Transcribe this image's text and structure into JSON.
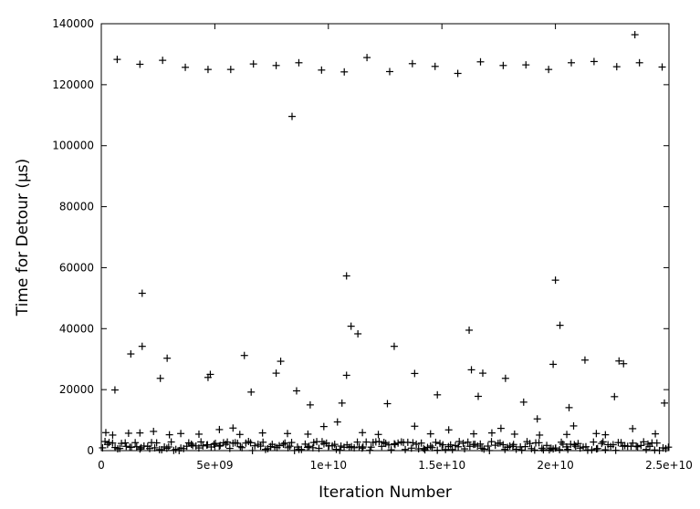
{
  "chart_data": {
    "type": "scatter",
    "title": "",
    "xlabel": "Iteration Number",
    "ylabel": "Time for Detour (µs)",
    "xlim": [
      0,
      25000000000
    ],
    "ylim": [
      0,
      140000
    ],
    "grid": false,
    "legend": "none",
    "marker": "plus",
    "marker_color": "#000000",
    "x_ticks": [
      {
        "value": 0,
        "label": "0"
      },
      {
        "value": 5000000000,
        "label": "5e+09"
      },
      {
        "value": 10000000000,
        "label": "1e+10"
      },
      {
        "value": 15000000000,
        "label": "1.5e+10"
      },
      {
        "value": 20000000000,
        "label": "2e+10"
      },
      {
        "value": 25000000000,
        "label": "2.5e+10"
      }
    ],
    "y_ticks": [
      {
        "value": 0,
        "label": "0"
      },
      {
        "value": 20000,
        "label": "20000"
      },
      {
        "value": 40000,
        "label": "40000"
      },
      {
        "value": 60000,
        "label": "60000"
      },
      {
        "value": 80000,
        "label": "80000"
      },
      {
        "value": 100000,
        "label": "100000"
      },
      {
        "value": 120000,
        "label": "120000"
      },
      {
        "value": 140000,
        "label": "140000"
      }
    ],
    "series": [
      {
        "values": [
          [
            700000000,
            128300
          ],
          [
            1700000000,
            126700
          ],
          [
            2700000000,
            128000
          ],
          [
            3700000000,
            125700
          ],
          [
            4700000000,
            125000
          ],
          [
            5700000000,
            125000
          ],
          [
            6700000000,
            126800
          ],
          [
            7700000000,
            126300
          ],
          [
            8700000000,
            127200
          ],
          [
            9700000000,
            124800
          ],
          [
            10700000000,
            124200
          ],
          [
            11700000000,
            128900
          ],
          [
            12700000000,
            124300
          ],
          [
            13700000000,
            126900
          ],
          [
            14700000000,
            126000
          ],
          [
            15700000000,
            123700
          ],
          [
            16700000000,
            127500
          ],
          [
            17700000000,
            126300
          ],
          [
            18700000000,
            126500
          ],
          [
            19700000000,
            125000
          ],
          [
            20700000000,
            127200
          ],
          [
            21700000000,
            127600
          ],
          [
            22700000000,
            125900
          ],
          [
            23500000000,
            136400
          ],
          [
            23700000000,
            127200
          ],
          [
            24700000000,
            125800
          ],
          [
            8400000000,
            109600
          ],
          [
            1800000000,
            51600
          ],
          [
            10800000000,
            57300
          ],
          [
            20000000000,
            55900
          ],
          [
            11000000000,
            40800
          ],
          [
            11300000000,
            38300
          ],
          [
            16200000000,
            39500
          ],
          [
            20200000000,
            41100
          ],
          [
            1300000000,
            31700
          ],
          [
            1800000000,
            34200
          ],
          [
            2900000000,
            30300
          ],
          [
            6300000000,
            31200
          ],
          [
            7900000000,
            29300
          ],
          [
            12900000000,
            34200
          ],
          [
            21300000000,
            29700
          ],
          [
            22800000000,
            29400
          ],
          [
            23000000000,
            28500
          ],
          [
            19900000000,
            28300
          ],
          [
            2600000000,
            23700
          ],
          [
            4700000000,
            24000
          ],
          [
            4800000000,
            25000
          ],
          [
            7700000000,
            25400
          ],
          [
            10800000000,
            24700
          ],
          [
            13800000000,
            25300
          ],
          [
            16300000000,
            26500
          ],
          [
            16800000000,
            25400
          ],
          [
            17800000000,
            23700
          ],
          [
            600000000,
            19900
          ],
          [
            6600000000,
            19200
          ],
          [
            8600000000,
            19600
          ],
          [
            14800000000,
            18300
          ],
          [
            16600000000,
            17800
          ],
          [
            22600000000,
            17700
          ],
          [
            9200000000,
            15000
          ],
          [
            10600000000,
            15600
          ],
          [
            12600000000,
            15400
          ],
          [
            18600000000,
            15900
          ],
          [
            20600000000,
            14100
          ],
          [
            24800000000,
            15600
          ],
          [
            10400000000,
            9400
          ],
          [
            19200000000,
            10400
          ],
          [
            9800000000,
            7900
          ],
          [
            13800000000,
            8000
          ],
          [
            20800000000,
            8100
          ],
          [
            23400000000,
            7200
          ],
          [
            5200000000,
            6900
          ],
          [
            15300000000,
            6800
          ],
          [
            17600000000,
            7300
          ],
          [
            5800000000,
            7400
          ],
          [
            200000000,
            5900
          ],
          [
            500000000,
            5100
          ],
          [
            1200000000,
            5700
          ],
          [
            1700000000,
            5800
          ],
          [
            2300000000,
            6300
          ],
          [
            3000000000,
            5200
          ],
          [
            3500000000,
            5600
          ],
          [
            4300000000,
            5400
          ],
          [
            6100000000,
            5300
          ],
          [
            7100000000,
            5800
          ],
          [
            8200000000,
            5600
          ],
          [
            9100000000,
            5400
          ],
          [
            11500000000,
            5900
          ],
          [
            12200000000,
            5300
          ],
          [
            14500000000,
            5500
          ],
          [
            16400000000,
            5500
          ],
          [
            17200000000,
            5800
          ],
          [
            18200000000,
            5400
          ],
          [
            19300000000,
            5100
          ],
          [
            20500000000,
            5300
          ],
          [
            21800000000,
            5600
          ],
          [
            22200000000,
            5200
          ],
          [
            24400000000,
            5500
          ]
        ],
        "dense_band": {
          "x_start": 0,
          "x_end": 25000000000,
          "y_min": 0,
          "y_max": 3000,
          "count": 230
        }
      }
    ]
  }
}
